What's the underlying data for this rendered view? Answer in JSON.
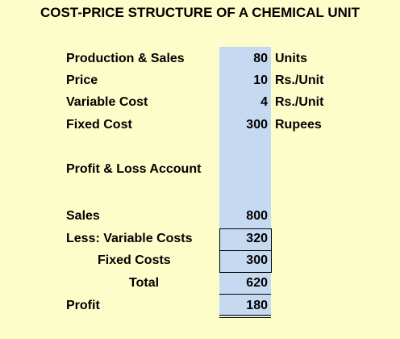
{
  "title": "COST-PRICE STRUCTURE OF A CHEMICAL UNIT",
  "rows": [
    {
      "label": "Production & Sales",
      "value": 80,
      "unit": "Units"
    },
    {
      "label": "Price",
      "value": 10,
      "unit": "Rs./Unit"
    },
    {
      "label": "Variable Cost",
      "value": 4,
      "unit": "Rs./Unit"
    },
    {
      "label": "Fixed Cost",
      "value": 300,
      "unit": "Rupees"
    },
    {
      "label": "Profit & Loss Account"
    },
    {
      "label": "Sales",
      "value": 800
    },
    {
      "label": "Less: Variable Costs",
      "value": 320
    },
    {
      "label": "Fixed Costs",
      "value": 300
    },
    {
      "label": "Total",
      "value": 620
    },
    {
      "label": "Profit",
      "value": 180
    }
  ]
}
